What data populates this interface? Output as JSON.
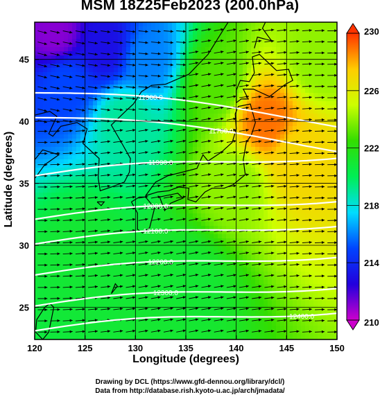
{
  "title": "MSM 18Z25Feb2023 (200.0hPa)",
  "credits": [
    "Drawing by DCL (https://www.gfd-dennou.org/library/dcl/)",
    "Data from http://database.rish.kyoto-u.ac.jp/arch/jmadata/"
  ],
  "chart_data": {
    "type": "heatmap",
    "title": "MSM 18Z25Feb2023 (200.0hPa)",
    "xlabel": "Longitude (degrees)",
    "ylabel": "Latitude  (degrees)",
    "xlim": [
      120,
      150
    ],
    "ylim": [
      22.4,
      48
    ],
    "x_ticks": [
      120,
      125,
      130,
      135,
      140,
      145,
      150
    ],
    "y_ticks": [
      25,
      30,
      35,
      40,
      45
    ],
    "grid": true,
    "colorbar": {
      "min": 210,
      "max": 230,
      "ticks": [
        210,
        214,
        218,
        222,
        226,
        230
      ],
      "colors": [
        "#cc00cc",
        "#2200dd",
        "#0044ff",
        "#00ddff",
        "#00ee55",
        "#33dd00",
        "#ccff00",
        "#ffcc00",
        "#ff3300"
      ]
    },
    "temperature_regions": [
      {
        "lon": 122,
        "lat": 47,
        "value": 211
      },
      {
        "lon": 127,
        "lat": 46,
        "value": 213
      },
      {
        "lon": 123,
        "lat": 43,
        "value": 215
      },
      {
        "lon": 131,
        "lat": 45,
        "value": 216
      },
      {
        "lon": 129,
        "lat": 40,
        "value": 219
      },
      {
        "lon": 138,
        "lat": 43,
        "value": 223
      },
      {
        "lon": 143,
        "lat": 40,
        "value": 229
      },
      {
        "lon": 146,
        "lat": 37,
        "value": 227
      },
      {
        "lon": 148,
        "lat": 45,
        "value": 224
      },
      {
        "lon": 140,
        "lat": 35,
        "value": 224
      },
      {
        "lon": 125,
        "lat": 30,
        "value": 221
      },
      {
        "lon": 135,
        "lat": 27,
        "value": 221
      }
    ],
    "contour_labels": [
      "11800.0",
      "11700.0",
      "11900.0",
      "12000.0",
      "12100.0",
      "12200.0",
      "12300.0",
      "12400.0"
    ]
  }
}
